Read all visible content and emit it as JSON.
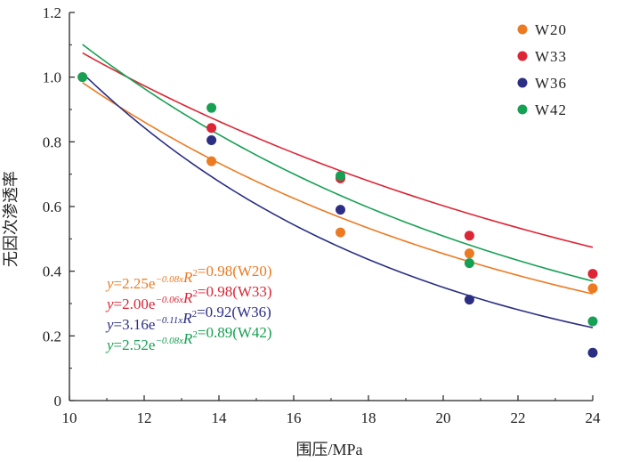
{
  "chart_data": {
    "type": "scatter",
    "xlabel": "围压/MPa",
    "ylabel": "无因次渗透率",
    "xlim": [
      10,
      24
    ],
    "ylim": [
      0,
      1.2
    ],
    "xticks": [
      "10",
      "12",
      "14",
      "16",
      "18",
      "20",
      "22",
      "24"
    ],
    "yticks": [
      "0",
      "0.2",
      "0.4",
      "0.6",
      "0.8",
      "1.0",
      "1.2"
    ],
    "legend": "top-right",
    "grid": false,
    "series": [
      {
        "name": "W20",
        "color": "#ec7a22",
        "x": [
          10.35,
          13.8,
          17.25,
          20.7,
          24.0
        ],
        "y": [
          1.0,
          0.74,
          0.52,
          0.455,
          0.347
        ],
        "fit": {
          "a": 2.25,
          "b": -0.08
        },
        "equation": {
          "lhs": "y",
          "eq_coef": "=2.25e",
          "exp": "−0.08x",
          "r2_label": "R",
          "r2_sup": "2",
          "r2_value": "=0.98(W20)"
        }
      },
      {
        "name": "W33",
        "color": "#dc2535",
        "x": [
          13.8,
          17.25,
          20.7,
          24.0
        ],
        "y": [
          0.843,
          0.687,
          0.51,
          0.392
        ],
        "fit": {
          "a": 2.0,
          "b": -0.06
        },
        "equation": {
          "lhs": "y",
          "eq_coef": "=2.00e",
          "exp": "−0.06x",
          "r2_label": "R",
          "r2_sup": "2",
          "r2_value": "=0.98(W33)"
        }
      },
      {
        "name": "W36",
        "color": "#2b2e83",
        "x": [
          13.8,
          17.25,
          20.7,
          24.0
        ],
        "y": [
          0.805,
          0.59,
          0.312,
          0.148
        ],
        "fit": {
          "a": 3.16,
          "b": -0.11
        },
        "equation": {
          "lhs": "y",
          "eq_coef": "=3.16e",
          "exp": "−0.11x",
          "r2_label": "R",
          "r2_sup": "2",
          "r2_value": "=0.92(W36)"
        }
      },
      {
        "name": "W42",
        "color": "#16a053",
        "x": [
          10.35,
          13.8,
          17.25,
          20.7,
          24.0
        ],
        "y": [
          1.0,
          0.905,
          0.695,
          0.425,
          0.245
        ],
        "fit": {
          "a": 2.52,
          "b": -0.08
        },
        "equation": {
          "lhs": "y",
          "eq_coef": "=2.52e",
          "exp": "−0.08x",
          "r2_label": "R",
          "r2_sup": "2",
          "r2_value": "=0.89(W42)"
        }
      }
    ]
  }
}
